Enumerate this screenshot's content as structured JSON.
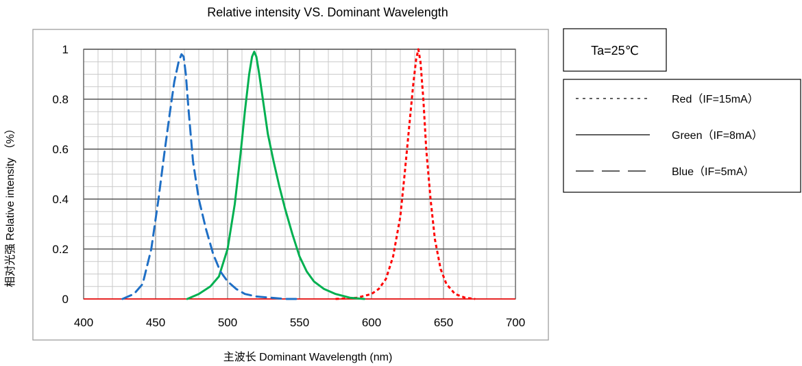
{
  "chart_data": {
    "type": "line",
    "title": "Relative intensity VS. Dominant Wavelength",
    "xlabel": "主波长 Dominant Wavelength (nm)",
    "ylabel": "相对光强 Relative intensity （%）",
    "xlim": [
      400,
      700
    ],
    "ylim": [
      0,
      1
    ],
    "x_ticks": [
      "400",
      "450",
      "500",
      "550",
      "600",
      "650",
      "700"
    ],
    "y_ticks": [
      "0",
      "0.2",
      "0.4",
      "0.6",
      "0.8",
      "1"
    ],
    "grid": true,
    "legend_position": "right",
    "condition": "Ta=25℃",
    "series": [
      {
        "name": "Red（IF=15mA）",
        "style": "dotted",
        "color": "#ff0000",
        "x": [
          575,
          590,
          600,
          605,
          610,
          615,
          620,
          623,
          626,
          629,
          631,
          632.5,
          634,
          636,
          638,
          641,
          644,
          648,
          652,
          658,
          665,
          672
        ],
        "y": [
          0,
          0.005,
          0.02,
          0.04,
          0.08,
          0.17,
          0.33,
          0.5,
          0.68,
          0.86,
          0.96,
          1.0,
          0.95,
          0.8,
          0.6,
          0.4,
          0.24,
          0.12,
          0.06,
          0.02,
          0.005,
          0
        ]
      },
      {
        "name": "Green（IF=8mA）",
        "style": "solid",
        "color": "#00b050",
        "x": [
          472,
          480,
          488,
          494,
          500,
          505,
          509,
          512,
          515,
          517,
          518.5,
          520,
          522,
          525,
          528,
          532,
          536,
          540,
          545,
          550,
          555,
          560,
          567,
          575,
          585,
          595
        ],
        "y": [
          0,
          0.02,
          0.05,
          0.09,
          0.2,
          0.38,
          0.58,
          0.75,
          0.9,
          0.97,
          0.99,
          0.97,
          0.9,
          0.78,
          0.66,
          0.55,
          0.45,
          0.36,
          0.26,
          0.17,
          0.11,
          0.07,
          0.04,
          0.02,
          0.005,
          0
        ]
      },
      {
        "name": "Blue（IF=5mA）",
        "style": "dashed",
        "color": "#1f6fc5",
        "x": [
          427,
          435,
          441,
          447,
          452,
          456,
          460,
          463,
          466,
          468,
          469.5,
          471,
          473,
          476,
          480,
          485,
          490,
          495,
          500,
          506,
          512,
          520,
          530,
          540,
          550
        ],
        "y": [
          0,
          0.02,
          0.06,
          0.2,
          0.4,
          0.58,
          0.75,
          0.87,
          0.95,
          0.98,
          0.97,
          0.9,
          0.75,
          0.55,
          0.4,
          0.28,
          0.18,
          0.11,
          0.07,
          0.04,
          0.02,
          0.01,
          0.005,
          0,
          0
        ]
      }
    ]
  }
}
